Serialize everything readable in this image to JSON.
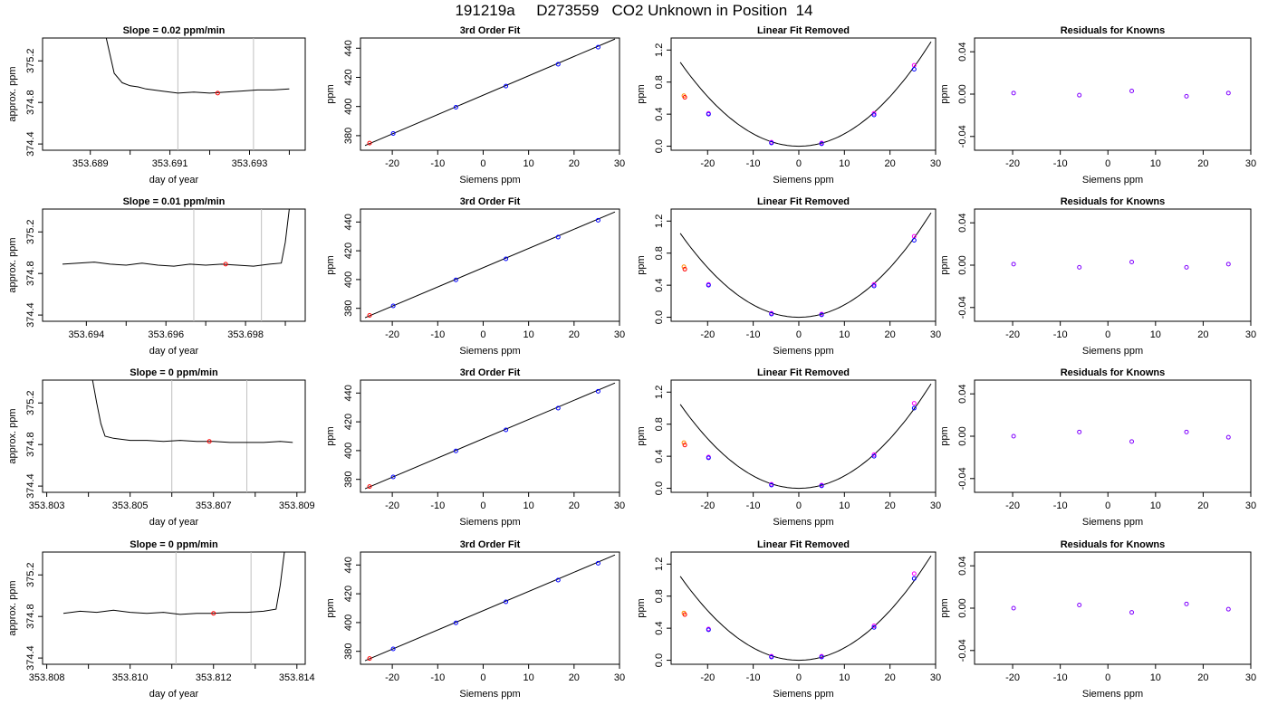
{
  "header": {
    "title": "191219a     D273559   CO2 Unknown in Position  14"
  },
  "colors": {
    "line": "#000000",
    "marker_line": "#c0c0c0",
    "known_points": "#0000ff",
    "unknown_point": "#ff0000",
    "unknown_marker": "#ff8c00",
    "previous_points": "#ff00ff",
    "residual_points": "#8000ff"
  },
  "chart_data": [
    {
      "type": "line",
      "title": "Slope =  0.02  ppm/min",
      "xlabel": "day of year",
      "ylabel": "approx. ppm",
      "xlim": [
        353.6878,
        353.6944
      ],
      "ylim": [
        374.34,
        375.42
      ],
      "xticks": [
        353.689,
        353.691,
        353.693
      ],
      "xtick_labels": [
        "353.689",
        "353.691",
        "353.693"
      ],
      "xticks_minor": [
        353.69,
        353.692,
        353.694
      ],
      "yticks": [
        374.4,
        374.8,
        375.2
      ],
      "ytick_labels": [
        "374.4",
        "374.8",
        "375.2"
      ],
      "vlines": [
        353.6912,
        353.6931
      ],
      "marker": {
        "x": 353.6922,
        "y": 374.89
      },
      "series": [
        {
          "x": [
            353.6894,
            353.6896,
            353.6898,
            353.69,
            353.6902,
            353.6904,
            353.6908,
            353.6912,
            353.6916,
            353.692,
            353.6924,
            353.6928,
            353.6932,
            353.6936,
            353.694
          ],
          "y": [
            375.42,
            375.08,
            374.99,
            374.96,
            374.95,
            374.93,
            374.91,
            374.89,
            374.9,
            374.89,
            374.9,
            374.91,
            374.92,
            374.92,
            374.93
          ]
        }
      ]
    },
    {
      "type": "scatter",
      "title": "3rd Order Fit",
      "xlabel": "Siemens ppm",
      "ylabel": "ppm",
      "xlim": [
        -27,
        30
      ],
      "ylim": [
        370,
        447
      ],
      "xticks": [
        -20,
        -10,
        0,
        10,
        20,
        30
      ],
      "xtick_labels": [
        "-20",
        "-10",
        "0",
        "10",
        "20",
        "30"
      ],
      "yticks": [
        380,
        400,
        420,
        440
      ],
      "ytick_labels": [
        "380",
        "400",
        "420",
        "440"
      ],
      "line": {
        "x": [
          -26,
          29
        ],
        "y": [
          373.2,
          446.3
        ]
      },
      "known_points": {
        "x": [
          -19.8,
          -6.0,
          5.0,
          16.5,
          25.3
        ],
        "y": [
          381.5,
          399.5,
          414.0,
          429.0,
          440.7
        ]
      },
      "unknown_point": {
        "x": -25.0,
        "y": 374.9
      }
    },
    {
      "type": "scatter",
      "title": "Linear Fit Removed",
      "xlabel": "Siemens ppm",
      "ylabel": "ppm",
      "xlim": [
        -28,
        30
      ],
      "ylim": [
        -0.05,
        1.35
      ],
      "xticks": [
        -20,
        -10,
        0,
        10,
        20,
        30
      ],
      "xtick_labels": [
        "-20",
        "-10",
        "0",
        "10",
        "20",
        "30"
      ],
      "yticks": [
        0.0,
        0.4,
        0.8,
        1.2
      ],
      "ytick_labels": [
        "0.0",
        "0.4",
        "0.8",
        "1.2"
      ],
      "curve": {
        "coefficient": 0.00155,
        "x_from": -26,
        "x_to": 29
      },
      "known_points": {
        "x": [
          -19.8,
          -6.0,
          5.0,
          16.5,
          25.3
        ],
        "y": [
          0.4,
          0.04,
          0.03,
          0.39,
          0.96
        ]
      },
      "previous_points": {
        "x": [
          -19.8,
          -6.0,
          5.0,
          16.5,
          25.3
        ],
        "y": [
          0.41,
          0.05,
          0.04,
          0.41,
          1.01
        ]
      },
      "unknown_point": {
        "x": -25.0,
        "y": 0.61
      },
      "unknown_marker": {
        "x": -25.2,
        "y": 0.63
      }
    },
    {
      "type": "scatter",
      "title": "Residuals for Knowns",
      "xlabel": "Siemens ppm",
      "ylabel": "ppm",
      "xlim": [
        -28,
        30
      ],
      "ylim": [
        -0.053,
        0.053
      ],
      "xticks": [
        -20,
        -10,
        0,
        10,
        20,
        30
      ],
      "xtick_labels": [
        "-20",
        "-10",
        "0",
        "10",
        "20",
        "30"
      ],
      "yticks": [
        -0.04,
        0.0,
        0.04
      ],
      "ytick_labels": [
        "-0.04",
        "0.00",
        "0.04"
      ],
      "points": {
        "x": [
          -19.8,
          -6.0,
          5.0,
          16.5,
          25.3
        ],
        "y": [
          0.001,
          -0.001,
          0.003,
          -0.002,
          0.001
        ]
      }
    },
    {
      "type": "line",
      "title": "Slope =  0.01  ppm/min",
      "xlabel": "day of year",
      "ylabel": "approx. ppm",
      "xlim": [
        353.6929,
        353.6995
      ],
      "ylim": [
        374.34,
        375.42
      ],
      "xticks": [
        353.694,
        353.696,
        353.698
      ],
      "xtick_labels": [
        "353.694",
        "353.696",
        "353.698"
      ],
      "xticks_minor": [
        353.695,
        353.697,
        353.699
      ],
      "yticks": [
        374.4,
        374.8,
        375.2
      ],
      "ytick_labels": [
        "374.4",
        "374.8",
        "375.2"
      ],
      "vlines": [
        353.6967,
        353.6984
      ],
      "marker": {
        "x": 353.6975,
        "y": 374.89
      },
      "series": [
        {
          "x": [
            353.6934,
            353.6938,
            353.6942,
            353.6946,
            353.695,
            353.6954,
            353.6958,
            353.6962,
            353.6966,
            353.697,
            353.6974,
            353.6978,
            353.6982,
            353.6986,
            353.6989,
            353.699,
            353.6991
          ],
          "y": [
            374.89,
            374.9,
            374.91,
            374.89,
            374.88,
            374.9,
            374.88,
            374.87,
            374.89,
            374.88,
            374.89,
            374.88,
            374.87,
            374.89,
            374.9,
            375.1,
            375.42
          ]
        }
      ]
    },
    {
      "type": "scatter",
      "title": "3rd Order Fit",
      "xlabel": "Siemens ppm",
      "ylabel": "ppm",
      "xlim": [
        -27,
        30
      ],
      "ylim": [
        371,
        449
      ],
      "xticks": [
        -20,
        -10,
        0,
        10,
        20,
        30
      ],
      "xtick_labels": [
        "-20",
        "-10",
        "0",
        "10",
        "20",
        "30"
      ],
      "yticks": [
        380,
        400,
        420,
        440
      ],
      "ytick_labels": [
        "380",
        "400",
        "420",
        "440"
      ],
      "line": {
        "x": [
          -26,
          29
        ],
        "y": [
          373.5,
          447.0
        ]
      },
      "known_points": {
        "x": [
          -19.8,
          -6.0,
          5.0,
          16.5,
          25.3
        ],
        "y": [
          381.7,
          399.8,
          414.4,
          429.5,
          441.2
        ]
      },
      "unknown_point": {
        "x": -25.0,
        "y": 375.1
      }
    },
    {
      "type": "scatter",
      "title": "Linear Fit Removed",
      "xlabel": "Siemens ppm",
      "ylabel": "ppm",
      "xlim": [
        -28,
        30
      ],
      "ylim": [
        -0.05,
        1.35
      ],
      "xticks": [
        -20,
        -10,
        0,
        10,
        20,
        30
      ],
      "xtick_labels": [
        "-20",
        "-10",
        "0",
        "10",
        "20",
        "30"
      ],
      "yticks": [
        0.0,
        0.4,
        0.8,
        1.2
      ],
      "ytick_labels": [
        "0.0",
        "0.4",
        "0.8",
        "1.2"
      ],
      "curve": {
        "coefficient": 0.00155,
        "x_from": -26,
        "x_to": 29
      },
      "known_points": {
        "x": [
          -19.8,
          -6.0,
          5.0,
          16.5,
          25.3
        ],
        "y": [
          0.4,
          0.04,
          0.03,
          0.39,
          0.96
        ]
      },
      "previous_points": {
        "x": [
          -19.8,
          -6.0,
          5.0,
          16.5,
          25.3
        ],
        "y": [
          0.41,
          0.05,
          0.04,
          0.41,
          1.01
        ]
      },
      "unknown_point": {
        "x": -25.0,
        "y": 0.6
      },
      "unknown_marker": {
        "x": -25.2,
        "y": 0.63
      }
    },
    {
      "type": "scatter",
      "title": "Residuals for Knowns",
      "xlabel": "Siemens ppm",
      "ylabel": "ppm",
      "xlim": [
        -28,
        30
      ],
      "ylim": [
        -0.053,
        0.053
      ],
      "xticks": [
        -20,
        -10,
        0,
        10,
        20,
        30
      ],
      "xtick_labels": [
        "-20",
        "-10",
        "0",
        "10",
        "20",
        "30"
      ],
      "yticks": [
        -0.04,
        0.0,
        0.04
      ],
      "ytick_labels": [
        "-0.04",
        "0.00",
        "0.04"
      ],
      "points": {
        "x": [
          -19.8,
          -6.0,
          5.0,
          16.5,
          25.3
        ],
        "y": [
          0.001,
          -0.002,
          0.003,
          -0.002,
          0.001
        ]
      }
    },
    {
      "type": "line",
      "title": "Slope =  0  ppm/min",
      "xlabel": "day of year",
      "ylabel": "approx. ppm",
      "xlim": [
        353.8029,
        353.8092
      ],
      "ylim": [
        374.34,
        375.42
      ],
      "xticks": [
        353.803,
        353.805,
        353.807,
        353.809
      ],
      "xtick_labels": [
        "353.803",
        "353.805",
        "353.807",
        "353.809"
      ],
      "xticks_minor": [
        353.804,
        353.806,
        353.808
      ],
      "yticks": [
        374.4,
        374.8,
        375.2
      ],
      "ytick_labels": [
        "374.4",
        "374.8",
        "375.2"
      ],
      "vlines": [
        353.806,
        353.8078
      ],
      "marker": {
        "x": 353.8069,
        "y": 374.83
      },
      "series": [
        {
          "x": [
            353.8041,
            353.8042,
            353.8043,
            353.8044,
            353.8046,
            353.805,
            353.8054,
            353.8058,
            353.8062,
            353.8066,
            353.807,
            353.8074,
            353.8078,
            353.8082,
            353.8086,
            353.8089
          ],
          "y": [
            375.42,
            375.2,
            375.0,
            374.88,
            374.86,
            374.84,
            374.84,
            374.83,
            374.84,
            374.83,
            374.83,
            374.82,
            374.82,
            374.82,
            374.83,
            374.82
          ]
        }
      ]
    },
    {
      "type": "scatter",
      "title": "3rd Order Fit",
      "xlabel": "Siemens ppm",
      "ylabel": "ppm",
      "xlim": [
        -27,
        30
      ],
      "ylim": [
        371,
        449
      ],
      "xticks": [
        -20,
        -10,
        0,
        10,
        20,
        30
      ],
      "xtick_labels": [
        "-20",
        "-10",
        "0",
        "10",
        "20",
        "30"
      ],
      "yticks": [
        380,
        400,
        420,
        440
      ],
      "ytick_labels": [
        "380",
        "400",
        "420",
        "440"
      ],
      "line": {
        "x": [
          -26,
          29
        ],
        "y": [
          373.5,
          447.0
        ]
      },
      "known_points": {
        "x": [
          -19.8,
          -6.0,
          5.0,
          16.5,
          25.3
        ],
        "y": [
          381.7,
          399.8,
          414.4,
          429.5,
          441.2
        ]
      },
      "unknown_point": {
        "x": -25.0,
        "y": 375.0
      }
    },
    {
      "type": "scatter",
      "title": "Linear Fit Removed",
      "xlabel": "Siemens ppm",
      "ylabel": "ppm",
      "xlim": [
        -28,
        30
      ],
      "ylim": [
        -0.05,
        1.35
      ],
      "xticks": [
        -20,
        -10,
        0,
        10,
        20,
        30
      ],
      "xtick_labels": [
        "-20",
        "-10",
        "0",
        "10",
        "20",
        "30"
      ],
      "yticks": [
        0.0,
        0.4,
        0.8,
        1.2
      ],
      "ytick_labels": [
        "0.0",
        "0.4",
        "0.8",
        "1.2"
      ],
      "curve": {
        "coefficient": 0.00155,
        "x_from": -26,
        "x_to": 29
      },
      "known_points": {
        "x": [
          -19.8,
          -6.0,
          5.0,
          16.5,
          25.3
        ],
        "y": [
          0.38,
          0.04,
          0.03,
          0.4,
          1.0
        ]
      },
      "previous_points": {
        "x": [
          -19.8,
          -6.0,
          5.0,
          16.5,
          25.3
        ],
        "y": [
          0.39,
          0.05,
          0.04,
          0.42,
          1.06
        ]
      },
      "unknown_point": {
        "x": -25.0,
        "y": 0.54
      },
      "unknown_marker": {
        "x": -25.2,
        "y": 0.57
      }
    },
    {
      "type": "scatter",
      "title": "Residuals for Knowns",
      "xlabel": "Siemens ppm",
      "ylabel": "ppm",
      "xlim": [
        -28,
        30
      ],
      "ylim": [
        -0.053,
        0.053
      ],
      "xticks": [
        -20,
        -10,
        0,
        10,
        20,
        30
      ],
      "xtick_labels": [
        "-20",
        "-10",
        "0",
        "10",
        "20",
        "30"
      ],
      "yticks": [
        -0.04,
        0.0,
        0.04
      ],
      "ytick_labels": [
        "-0.04",
        "0.00",
        "0.04"
      ],
      "points": {
        "x": [
          -19.8,
          -6.0,
          5.0,
          16.5,
          25.3
        ],
        "y": [
          0.0,
          0.004,
          -0.005,
          0.004,
          -0.001
        ]
      }
    },
    {
      "type": "line",
      "title": "Slope =  0  ppm/min",
      "xlabel": "day of year",
      "ylabel": "approx. ppm",
      "xlim": [
        353.8079,
        353.8142
      ],
      "ylim": [
        374.34,
        375.42
      ],
      "xticks": [
        353.808,
        353.81,
        353.812,
        353.814
      ],
      "xtick_labels": [
        "353.808",
        "353.810",
        "353.812",
        "353.814"
      ],
      "xticks_minor": [
        353.809,
        353.811,
        353.813
      ],
      "yticks": [
        374.4,
        374.8,
        375.2
      ],
      "ytick_labels": [
        "374.4",
        "374.8",
        "375.2"
      ],
      "vlines": [
        353.8111,
        353.8129
      ],
      "marker": {
        "x": 353.812,
        "y": 374.83
      },
      "series": [
        {
          "x": [
            353.8084,
            353.8088,
            353.8092,
            353.8096,
            353.81,
            353.8104,
            353.8108,
            353.8112,
            353.8116,
            353.812,
            353.8124,
            353.8128,
            353.8132,
            353.8135,
            353.8136,
            353.8137
          ],
          "y": [
            374.83,
            374.85,
            374.84,
            374.86,
            374.84,
            374.83,
            374.84,
            374.82,
            374.83,
            374.83,
            374.84,
            374.84,
            374.85,
            374.87,
            375.1,
            375.42
          ]
        }
      ]
    },
    {
      "type": "scatter",
      "title": "3rd Order Fit",
      "xlabel": "Siemens ppm",
      "ylabel": "ppm",
      "xlim": [
        -27,
        30
      ],
      "ylim": [
        371,
        449
      ],
      "xticks": [
        -20,
        -10,
        0,
        10,
        20,
        30
      ],
      "xtick_labels": [
        "-20",
        "-10",
        "0",
        "10",
        "20",
        "30"
      ],
      "yticks": [
        380,
        400,
        420,
        440
      ],
      "ytick_labels": [
        "380",
        "400",
        "420",
        "440"
      ],
      "line": {
        "x": [
          -26,
          29
        ],
        "y": [
          373.5,
          447.0
        ]
      },
      "known_points": {
        "x": [
          -19.8,
          -6.0,
          5.0,
          16.5,
          25.3
        ],
        "y": [
          381.7,
          399.8,
          414.4,
          429.5,
          441.2
        ]
      },
      "unknown_point": {
        "x": -25.0,
        "y": 375.0
      }
    },
    {
      "type": "scatter",
      "title": "Linear Fit Removed",
      "xlabel": "Siemens ppm",
      "ylabel": "ppm",
      "xlim": [
        -28,
        30
      ],
      "ylim": [
        -0.05,
        1.35
      ],
      "xticks": [
        -20,
        -10,
        0,
        10,
        20,
        30
      ],
      "xtick_labels": [
        "-20",
        "-10",
        "0",
        "10",
        "20",
        "30"
      ],
      "yticks": [
        0.0,
        0.4,
        0.8,
        1.2
      ],
      "ytick_labels": [
        "0.0",
        "0.4",
        "0.8",
        "1.2"
      ],
      "curve": {
        "coefficient": 0.00155,
        "x_from": -26,
        "x_to": 29
      },
      "known_points": {
        "x": [
          -19.8,
          -6.0,
          5.0,
          16.5,
          25.3
        ],
        "y": [
          0.38,
          0.04,
          0.04,
          0.41,
          1.02
        ]
      },
      "previous_points": {
        "x": [
          -19.8,
          -6.0,
          5.0,
          16.5,
          25.3
        ],
        "y": [
          0.39,
          0.05,
          0.05,
          0.43,
          1.08
        ]
      },
      "unknown_point": {
        "x": -25.0,
        "y": 0.57
      },
      "unknown_marker": {
        "x": -25.2,
        "y": 0.59
      }
    },
    {
      "type": "scatter",
      "title": "Residuals for Knowns",
      "xlabel": "Siemens ppm",
      "ylabel": "ppm",
      "xlim": [
        -28,
        30
      ],
      "ylim": [
        -0.053,
        0.053
      ],
      "xticks": [
        -20,
        -10,
        0,
        10,
        20,
        30
      ],
      "xtick_labels": [
        "-20",
        "-10",
        "0",
        "10",
        "20",
        "30"
      ],
      "yticks": [
        -0.04,
        0.0,
        0.04
      ],
      "ytick_labels": [
        "-0.04",
        "0.00",
        "0.04"
      ],
      "points": {
        "x": [
          -19.8,
          -6.0,
          5.0,
          16.5,
          25.3
        ],
        "y": [
          0.0,
          0.003,
          -0.004,
          0.004,
          -0.001
        ]
      }
    }
  ]
}
